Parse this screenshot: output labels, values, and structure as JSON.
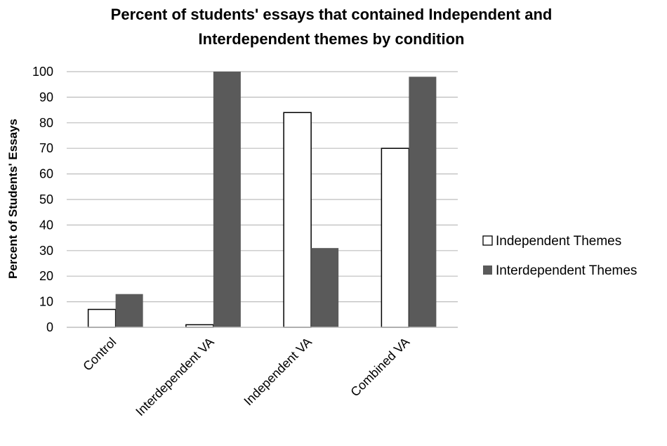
{
  "chart_data": {
    "type": "bar",
    "title_lines": [
      "Percent of students' essays that contained Independent and",
      "Interdependent themes by condition"
    ],
    "xlabel": "",
    "ylabel": "Percent of Students' Essays",
    "ylim": [
      0,
      100
    ],
    "yticks": [
      0,
      10,
      20,
      30,
      40,
      50,
      60,
      70,
      80,
      90,
      100
    ],
    "grid": true,
    "legend_position": "right",
    "categories": [
      "Control",
      "Interdependent VA",
      "Independent VA",
      "Combined VA"
    ],
    "series": [
      {
        "name": "Independent Themes",
        "values": [
          7,
          1,
          84,
          70
        ],
        "color": "#ffffff"
      },
      {
        "name": "Interdependent Themes",
        "values": [
          13,
          100,
          31,
          98
        ],
        "color": "#5a5a5a"
      }
    ]
  }
}
